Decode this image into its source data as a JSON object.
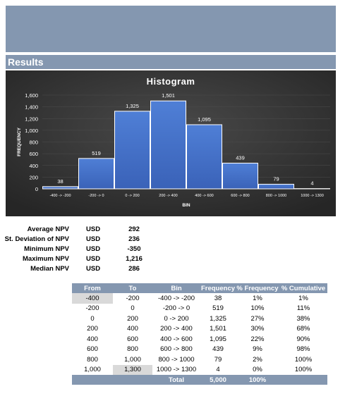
{
  "header": {
    "section_title": "Results"
  },
  "chart_data": {
    "type": "bar",
    "title": "Histogram",
    "xlabel": "BIN",
    "ylabel": "FREQUENCY",
    "categories": [
      "-400 -> -200",
      "-200 -> 0",
      "0 -> 200",
      "200 -> 400",
      "400 -> 600",
      "600 -> 800",
      "800 -> 1000",
      "1000 -> 1300"
    ],
    "values": [
      38,
      519,
      1325,
      1501,
      1095,
      439,
      79,
      4
    ],
    "data_labels": [
      "38",
      "519",
      "1,325",
      "1,501",
      "1,095",
      "439",
      "79",
      "4"
    ],
    "yticks": [
      "0",
      "200",
      "400",
      "600",
      "800",
      "1,000",
      "1,200",
      "1,400",
      "1,600"
    ],
    "ylim": [
      0,
      1600
    ],
    "grid": true,
    "legend": "none",
    "colors": {
      "bar": "#4472c4",
      "background": "#3a3a3a",
      "text": "#ffffff"
    }
  },
  "stats": [
    {
      "label": "Average NPV",
      "unit": "USD",
      "value": "292"
    },
    {
      "label": "St. Deviation of NPV",
      "unit": "USD",
      "value": "236"
    },
    {
      "label": "Minimum NPV",
      "unit": "USD",
      "value": "-350"
    },
    {
      "label": "Maximum NPV",
      "unit": "USD",
      "value": "1,216"
    },
    {
      "label": "Median NPV",
      "unit": "USD",
      "value": "286"
    }
  ],
  "table": {
    "headers": [
      "From",
      "To",
      "Bin",
      "Frequency",
      "% Frequency",
      "% Cumulative"
    ],
    "rows": [
      [
        "-400",
        "-200",
        "-400 -> -200",
        "38",
        "1%",
        "1%"
      ],
      [
        "-200",
        "0",
        "-200 -> 0",
        "519",
        "10%",
        "11%"
      ],
      [
        "0",
        "200",
        "0 -> 200",
        "1,325",
        "27%",
        "38%"
      ],
      [
        "200",
        "400",
        "200 -> 400",
        "1,501",
        "30%",
        "68%"
      ],
      [
        "400",
        "600",
        "400 -> 600",
        "1,095",
        "22%",
        "90%"
      ],
      [
        "600",
        "800",
        "600 -> 800",
        "439",
        "9%",
        "98%"
      ],
      [
        "800",
        "1,000",
        "800 -> 1000",
        "79",
        "2%",
        "100%"
      ],
      [
        "1,000",
        "1,300",
        "1000 -> 1300",
        "4",
        "0%",
        "100%"
      ]
    ],
    "total": {
      "label": "Total",
      "frequency": "5,000",
      "percent": "100%"
    },
    "highlight_color": "#d9d9d9"
  }
}
